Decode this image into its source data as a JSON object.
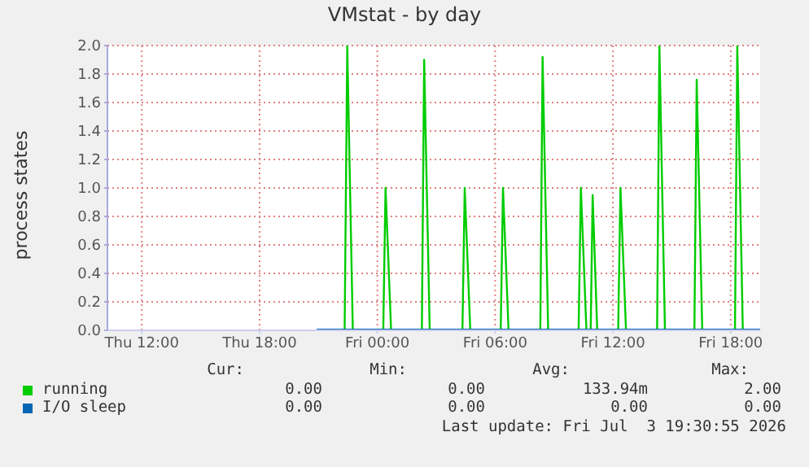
{
  "chart_data": {
    "type": "line",
    "title": "VMstat - by day",
    "ylabel": "process states",
    "xlim": [
      "2026-07-02T10:15",
      "2026-07-03T19:30"
    ],
    "xticks": [
      {
        "value": "2026-07-02T12:00",
        "label": "Thu 12:00"
      },
      {
        "value": "2026-07-02T18:00",
        "label": "Thu 18:00"
      },
      {
        "value": "2026-07-03T00:00",
        "label": "Fri 00:00"
      },
      {
        "value": "2026-07-03T06:00",
        "label": "Fri 06:00"
      },
      {
        "value": "2026-07-03T12:00",
        "label": "Fri 12:00"
      },
      {
        "value": "2026-07-03T18:00",
        "label": "Fri 18:00"
      }
    ],
    "ylim": [
      0,
      2
    ],
    "yticks": [
      {
        "value": 0,
        "label": "0.0"
      },
      {
        "value": 0.2,
        "label": "0.2"
      },
      {
        "value": 0.4,
        "label": "0.4"
      },
      {
        "value": 0.6,
        "label": "0.6"
      },
      {
        "value": 0.8,
        "label": "0.8"
      },
      {
        "value": 1,
        "label": "1.0"
      },
      {
        "value": 1.2,
        "label": "1.2"
      },
      {
        "value": 1.4,
        "label": "1.4"
      },
      {
        "value": 1.6,
        "label": "1.6"
      },
      {
        "value": 1.8,
        "label": "1.8"
      },
      {
        "value": 2,
        "label": "2.0"
      }
    ],
    "grid": true,
    "legend": "bottom",
    "marker": "none",
    "series": [
      {
        "name": "running",
        "color": "#00cc00",
        "x": [
          "2026-07-02T20:55",
          "2026-07-02T22:20",
          "2026-07-02T22:28",
          "2026-07-02T22:45",
          "2026-07-03T00:18",
          "2026-07-03T00:25",
          "2026-07-03T00:42",
          "2026-07-03T02:16",
          "2026-07-03T02:23",
          "2026-07-03T02:40",
          "2026-07-03T04:20",
          "2026-07-03T04:27",
          "2026-07-03T04:44",
          "2026-07-03T06:17",
          "2026-07-03T06:24",
          "2026-07-03T06:41",
          "2026-07-03T08:18",
          "2026-07-03T08:25",
          "2026-07-03T08:42",
          "2026-07-03T10:15",
          "2026-07-03T10:22",
          "2026-07-03T10:39",
          "2026-07-03T10:52",
          "2026-07-03T10:58",
          "2026-07-03T11:12",
          "2026-07-03T12:16",
          "2026-07-03T12:23",
          "2026-07-03T12:40",
          "2026-07-03T14:15",
          "2026-07-03T14:22",
          "2026-07-03T14:39",
          "2026-07-03T16:09",
          "2026-07-03T16:16",
          "2026-07-03T16:33",
          "2026-07-03T18:13",
          "2026-07-03T18:20",
          "2026-07-03T18:37",
          "2026-07-03T19:30"
        ],
        "values": [
          0,
          0,
          2.0,
          0,
          0,
          1.0,
          0,
          0,
          1.9,
          0,
          0,
          1.0,
          0,
          0,
          1.0,
          0,
          0,
          1.92,
          0,
          0,
          1.0,
          0,
          0,
          0.95,
          0,
          0,
          1.0,
          0,
          0,
          2.0,
          0,
          0,
          1.76,
          0,
          0,
          2.0,
          0,
          0
        ]
      },
      {
        "name": "I/O sleep",
        "color": "#0066b3",
        "x": [
          "2026-07-02T20:55",
          "2026-07-03T19:30"
        ],
        "values": [
          0,
          0
        ]
      }
    ],
    "annotations": [
      "Cur:",
      "Min:",
      "Avg:",
      "Max:",
      "0.00",
      "0.00",
      "133.94m",
      "2.00",
      "0.00",
      "0.00",
      "0.00",
      "0.00",
      "Last update: Fri Jul  3 19:30:55 2026"
    ]
  }
}
